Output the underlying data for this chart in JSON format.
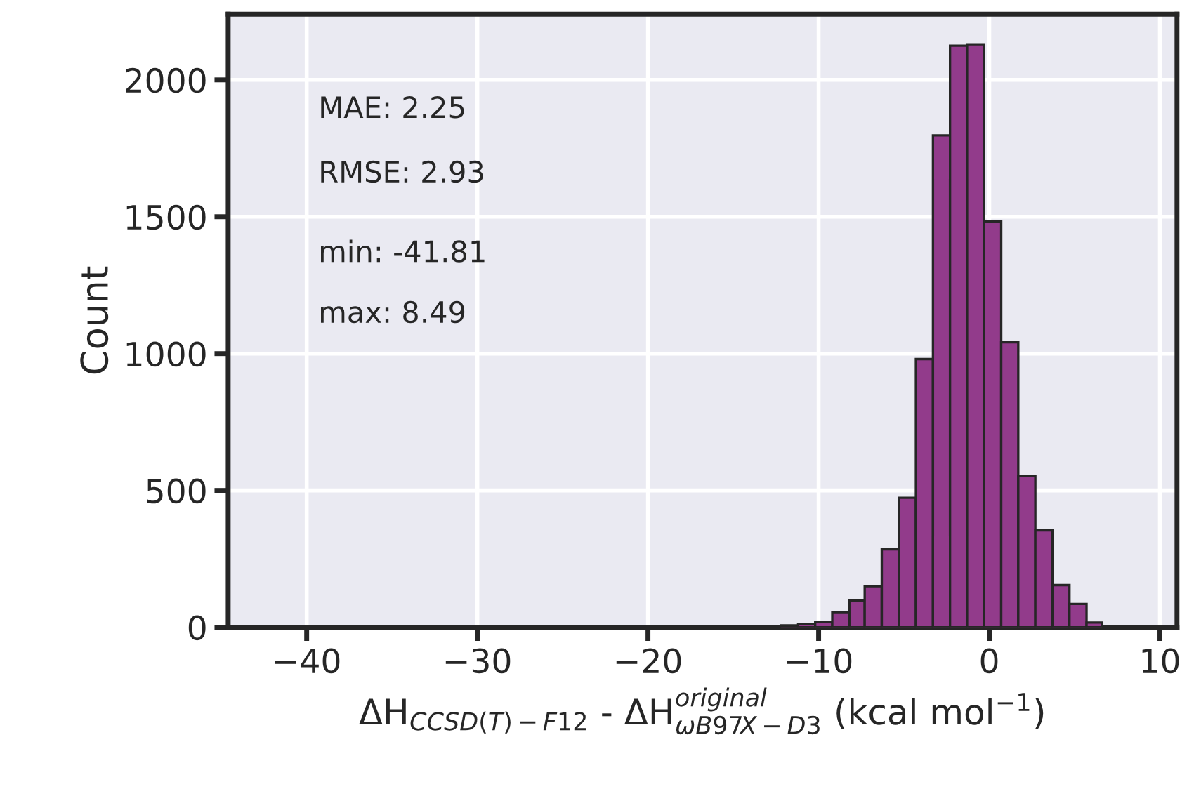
{
  "chart_data": {
    "type": "histogram",
    "xlabel": "ΔH$_{CCSD(T)−F12}$ - ΔH$^{original}$$_{ωB97X−D3}$ (kcal mol$^{−1}$)",
    "ylabel": "Count",
    "annotations": [
      "MAE: 2.25",
      "RMSE: 2.93",
      "min: -41.81",
      "max: 8.49"
    ],
    "bins": [
      -12.2,
      -11.2,
      -10.2,
      -9.2,
      -8.2,
      -7.3,
      -6.3,
      -5.3,
      -4.3,
      -3.3,
      -2.3,
      -1.3,
      -0.3,
      0.7,
      1.7,
      2.7,
      3.7,
      4.7,
      5.7,
      6.6
    ],
    "values": [
      7,
      12,
      20,
      55,
      97,
      150,
      285,
      473,
      980,
      1797,
      2125,
      2130,
      1482,
      1041,
      552,
      354,
      154,
      85,
      17
    ],
    "color": "#923b8b",
    "xlim": [
      -44.6,
      11.0
    ],
    "xticks": [
      {
        "value": -40,
        "label": "−40"
      },
      {
        "value": -30,
        "label": "−30"
      },
      {
        "value": -20,
        "label": "−20"
      },
      {
        "value": -10,
        "label": "−10"
      },
      0,
      10
    ],
    "ylim": [
      0,
      2240
    ],
    "yticks": [
      0,
      500,
      1000,
      1500,
      2000
    ],
    "grid": true
  }
}
